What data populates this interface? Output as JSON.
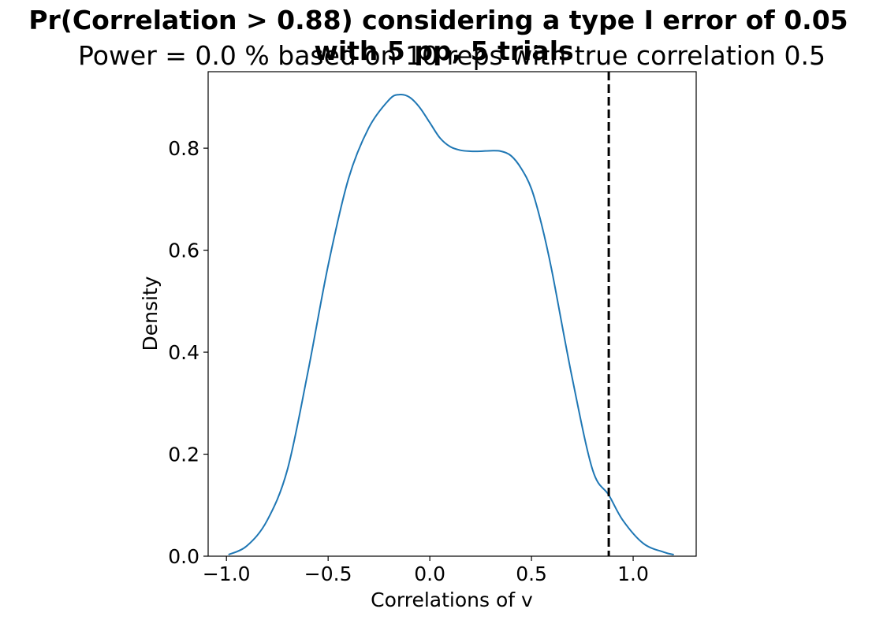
{
  "chart_data": {
    "type": "line",
    "title": "Pr(Correlation > 0.88) considering a type I error of 0.05 with 5 pp, 5 trials",
    "title_lines": [
      "Pr(Correlation > 0.88) considering a type I error of 0.05",
      "with 5 pp, 5 trials"
    ],
    "subtitle": "Power = 0.0 % based on 10 reps with true correlation 0.5",
    "xlabel": "Correlations of v",
    "ylabel": "Density",
    "xlim": [
      -1.09,
      1.31
    ],
    "ylim": [
      0.0,
      0.95
    ],
    "xticks": [
      -1.0,
      -0.5,
      0.0,
      0.5,
      1.0
    ],
    "xtick_labels": [
      "−1.0",
      "−0.5",
      "0.0",
      "0.5",
      "1.0"
    ],
    "yticks": [
      0.0,
      0.2,
      0.4,
      0.6,
      0.8
    ],
    "ytick_labels": [
      "0.0",
      "0.2",
      "0.4",
      "0.6",
      "0.8"
    ],
    "grid": false,
    "series": [
      {
        "color": "#1f77b4",
        "x": [
          -0.99,
          -0.9,
          -0.8,
          -0.7,
          -0.6,
          -0.5,
          -0.4,
          -0.3,
          -0.2,
          -0.15,
          -0.1,
          -0.05,
          0.0,
          0.05,
          0.1,
          0.15,
          0.2,
          0.25,
          0.3,
          0.35,
          0.4,
          0.45,
          0.5,
          0.55,
          0.6,
          0.7,
          0.8,
          0.88,
          0.95,
          1.05,
          1.15,
          1.2
        ],
        "y": [
          0.003,
          0.02,
          0.07,
          0.17,
          0.36,
          0.57,
          0.74,
          0.84,
          0.895,
          0.905,
          0.9,
          0.88,
          0.85,
          0.82,
          0.803,
          0.796,
          0.794,
          0.794,
          0.795,
          0.794,
          0.785,
          0.76,
          0.72,
          0.65,
          0.56,
          0.35,
          0.17,
          0.12,
          0.07,
          0.025,
          0.008,
          0.003
        ]
      }
    ],
    "threshold": {
      "x": 0.88,
      "color": "#000000",
      "style": "dashed"
    }
  }
}
